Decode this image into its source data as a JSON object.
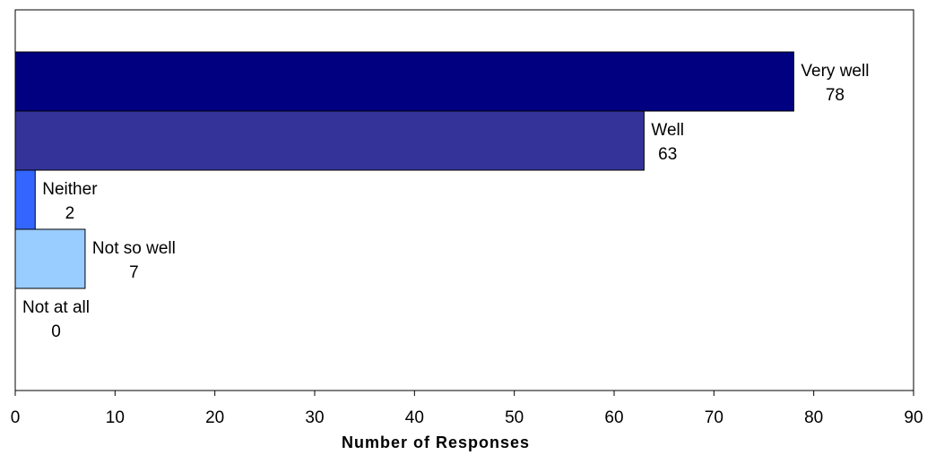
{
  "chart_data": {
    "type": "bar",
    "orientation": "horizontal",
    "categories": [
      "Very well",
      "Well",
      "Neither",
      "Not so well",
      "Not at all"
    ],
    "values": [
      78,
      63,
      2,
      7,
      0
    ],
    "colors": [
      "#000080",
      "#333399",
      "#3366ff",
      "#99ccff",
      "#ffffff"
    ],
    "xlabel": "Number of Responses",
    "ylabel": "",
    "xlim": [
      0,
      90
    ],
    "xticks": [
      0,
      10,
      20,
      30,
      40,
      50,
      60,
      70,
      80,
      90
    ],
    "grid": false,
    "legend": "none",
    "data_labels": "category name and value beside each bar"
  }
}
